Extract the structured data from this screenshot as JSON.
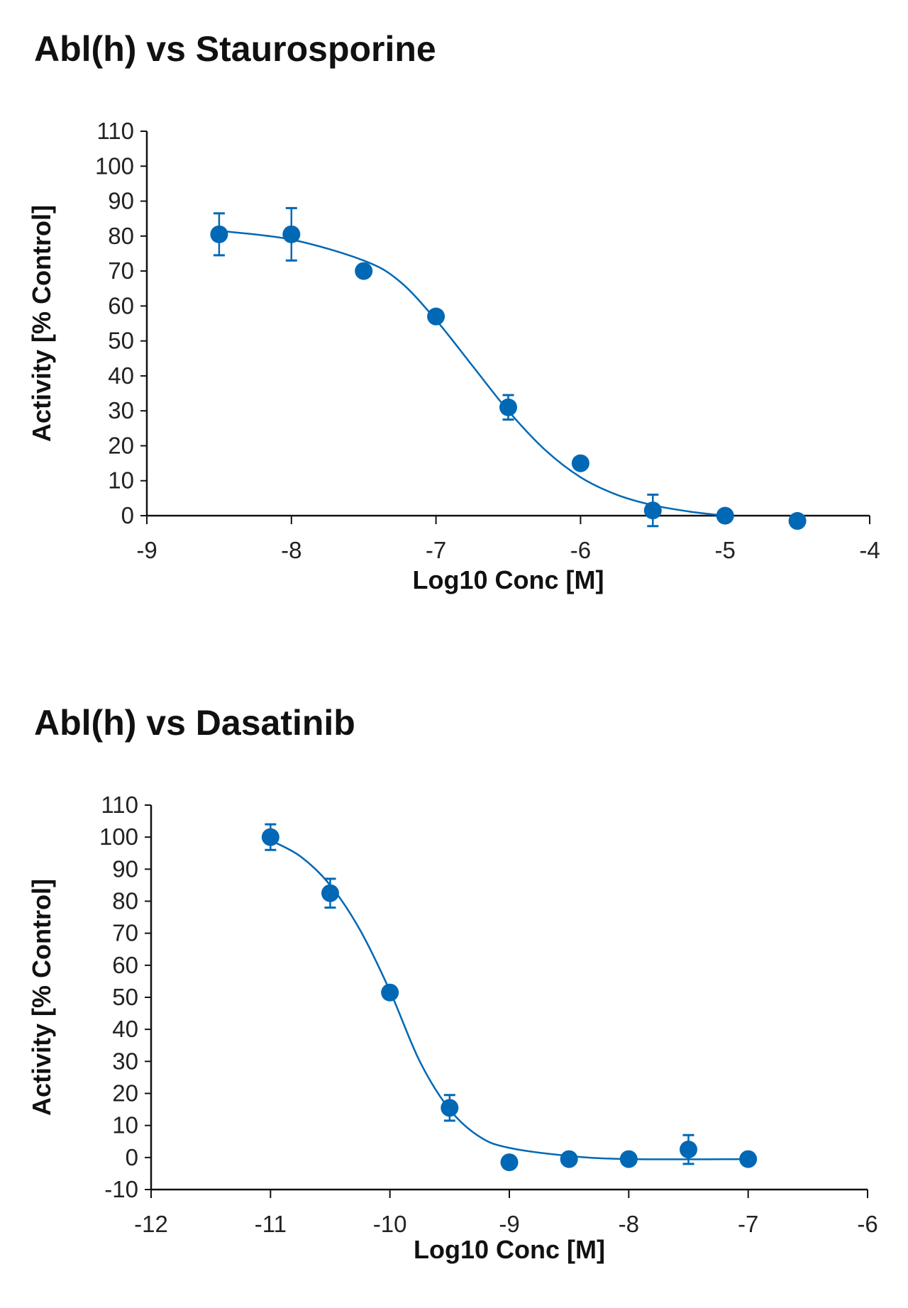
{
  "chart_data": [
    {
      "type": "scatter",
      "title": "Abl(h) vs Staurosporine",
      "xlabel": "Log10 Conc [M]",
      "ylabel": "Activity [% Control]",
      "xlim": [
        -9,
        -4
      ],
      "ylim": [
        0,
        110
      ],
      "xticks": [
        -9,
        -8,
        -7,
        -6,
        -5,
        -4
      ],
      "yticks": [
        0,
        10,
        20,
        30,
        40,
        50,
        60,
        70,
        80,
        90,
        100,
        110
      ],
      "grid": false,
      "color": "#0068b4",
      "points": [
        {
          "x": -8.5,
          "y": 80.5,
          "err": 6
        },
        {
          "x": -8,
          "y": 80.5,
          "err": 7.5
        },
        {
          "x": -7.5,
          "y": 70
        },
        {
          "x": -7,
          "y": 57
        },
        {
          "x": -6.5,
          "y": 31,
          "err": 3.5
        },
        {
          "x": -6,
          "y": 15
        },
        {
          "x": -5.5,
          "y": 1.5,
          "err": 4.5
        },
        {
          "x": -5,
          "y": 0
        },
        {
          "x": -4.5,
          "y": -1.5
        }
      ],
      "fit_curve": [
        [
          -8.5,
          81.5
        ],
        [
          -8,
          79
        ],
        [
          -7.5,
          73
        ],
        [
          -7.25,
          67
        ],
        [
          -7,
          56
        ],
        [
          -6.75,
          43
        ],
        [
          -6.5,
          30
        ],
        [
          -6.25,
          19
        ],
        [
          -6,
          11
        ],
        [
          -5.75,
          6
        ],
        [
          -5.5,
          3
        ],
        [
          -5.25,
          1.2
        ],
        [
          -5,
          0
        ]
      ]
    },
    {
      "type": "scatter",
      "title": "Abl(h) vs Dasatinib",
      "xlabel": "Log10 Conc [M]",
      "ylabel": "Activity [% Control]",
      "xlim": [
        -12,
        -6
      ],
      "ylim": [
        -10,
        110
      ],
      "xticks": [
        -12,
        -11,
        -10,
        -9,
        -8,
        -7,
        -6
      ],
      "yticks": [
        -10,
        0,
        10,
        20,
        30,
        40,
        50,
        60,
        70,
        80,
        90,
        100,
        110
      ],
      "grid": false,
      "color": "#0068b4",
      "points": [
        {
          "x": -11,
          "y": 100,
          "err": 4
        },
        {
          "x": -10.5,
          "y": 82.5,
          "err": 4.5
        },
        {
          "x": -10,
          "y": 51.5
        },
        {
          "x": -9.5,
          "y": 15.5,
          "err": 4
        },
        {
          "x": -9,
          "y": -1.5
        },
        {
          "x": -8.5,
          "y": -0.5
        },
        {
          "x": -8,
          "y": -0.5
        },
        {
          "x": -7.5,
          "y": 2.5,
          "err": 4.5
        },
        {
          "x": -7,
          "y": -0.5
        }
      ],
      "fit_curve": [
        [
          -11,
          99
        ],
        [
          -10.75,
          94
        ],
        [
          -10.5,
          85
        ],
        [
          -10.25,
          71
        ],
        [
          -10,
          52
        ],
        [
          -9.75,
          30
        ],
        [
          -9.5,
          15
        ],
        [
          -9.25,
          6.5
        ],
        [
          -9,
          3
        ],
        [
          -8.5,
          0.5
        ],
        [
          -8,
          -0.5
        ],
        [
          -7,
          -0.5
        ]
      ]
    }
  ]
}
